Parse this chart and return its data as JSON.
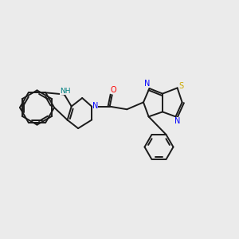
{
  "background_color": "#ebebeb",
  "bond_color": "#1a1a1a",
  "atom_colors": {
    "N": "#0000ff",
    "O": "#ff0000",
    "S": "#ccaa00",
    "NH": "#008080",
    "C": "#1a1a1a"
  },
  "figsize": [
    3.0,
    3.0
  ],
  "dpi": 100
}
